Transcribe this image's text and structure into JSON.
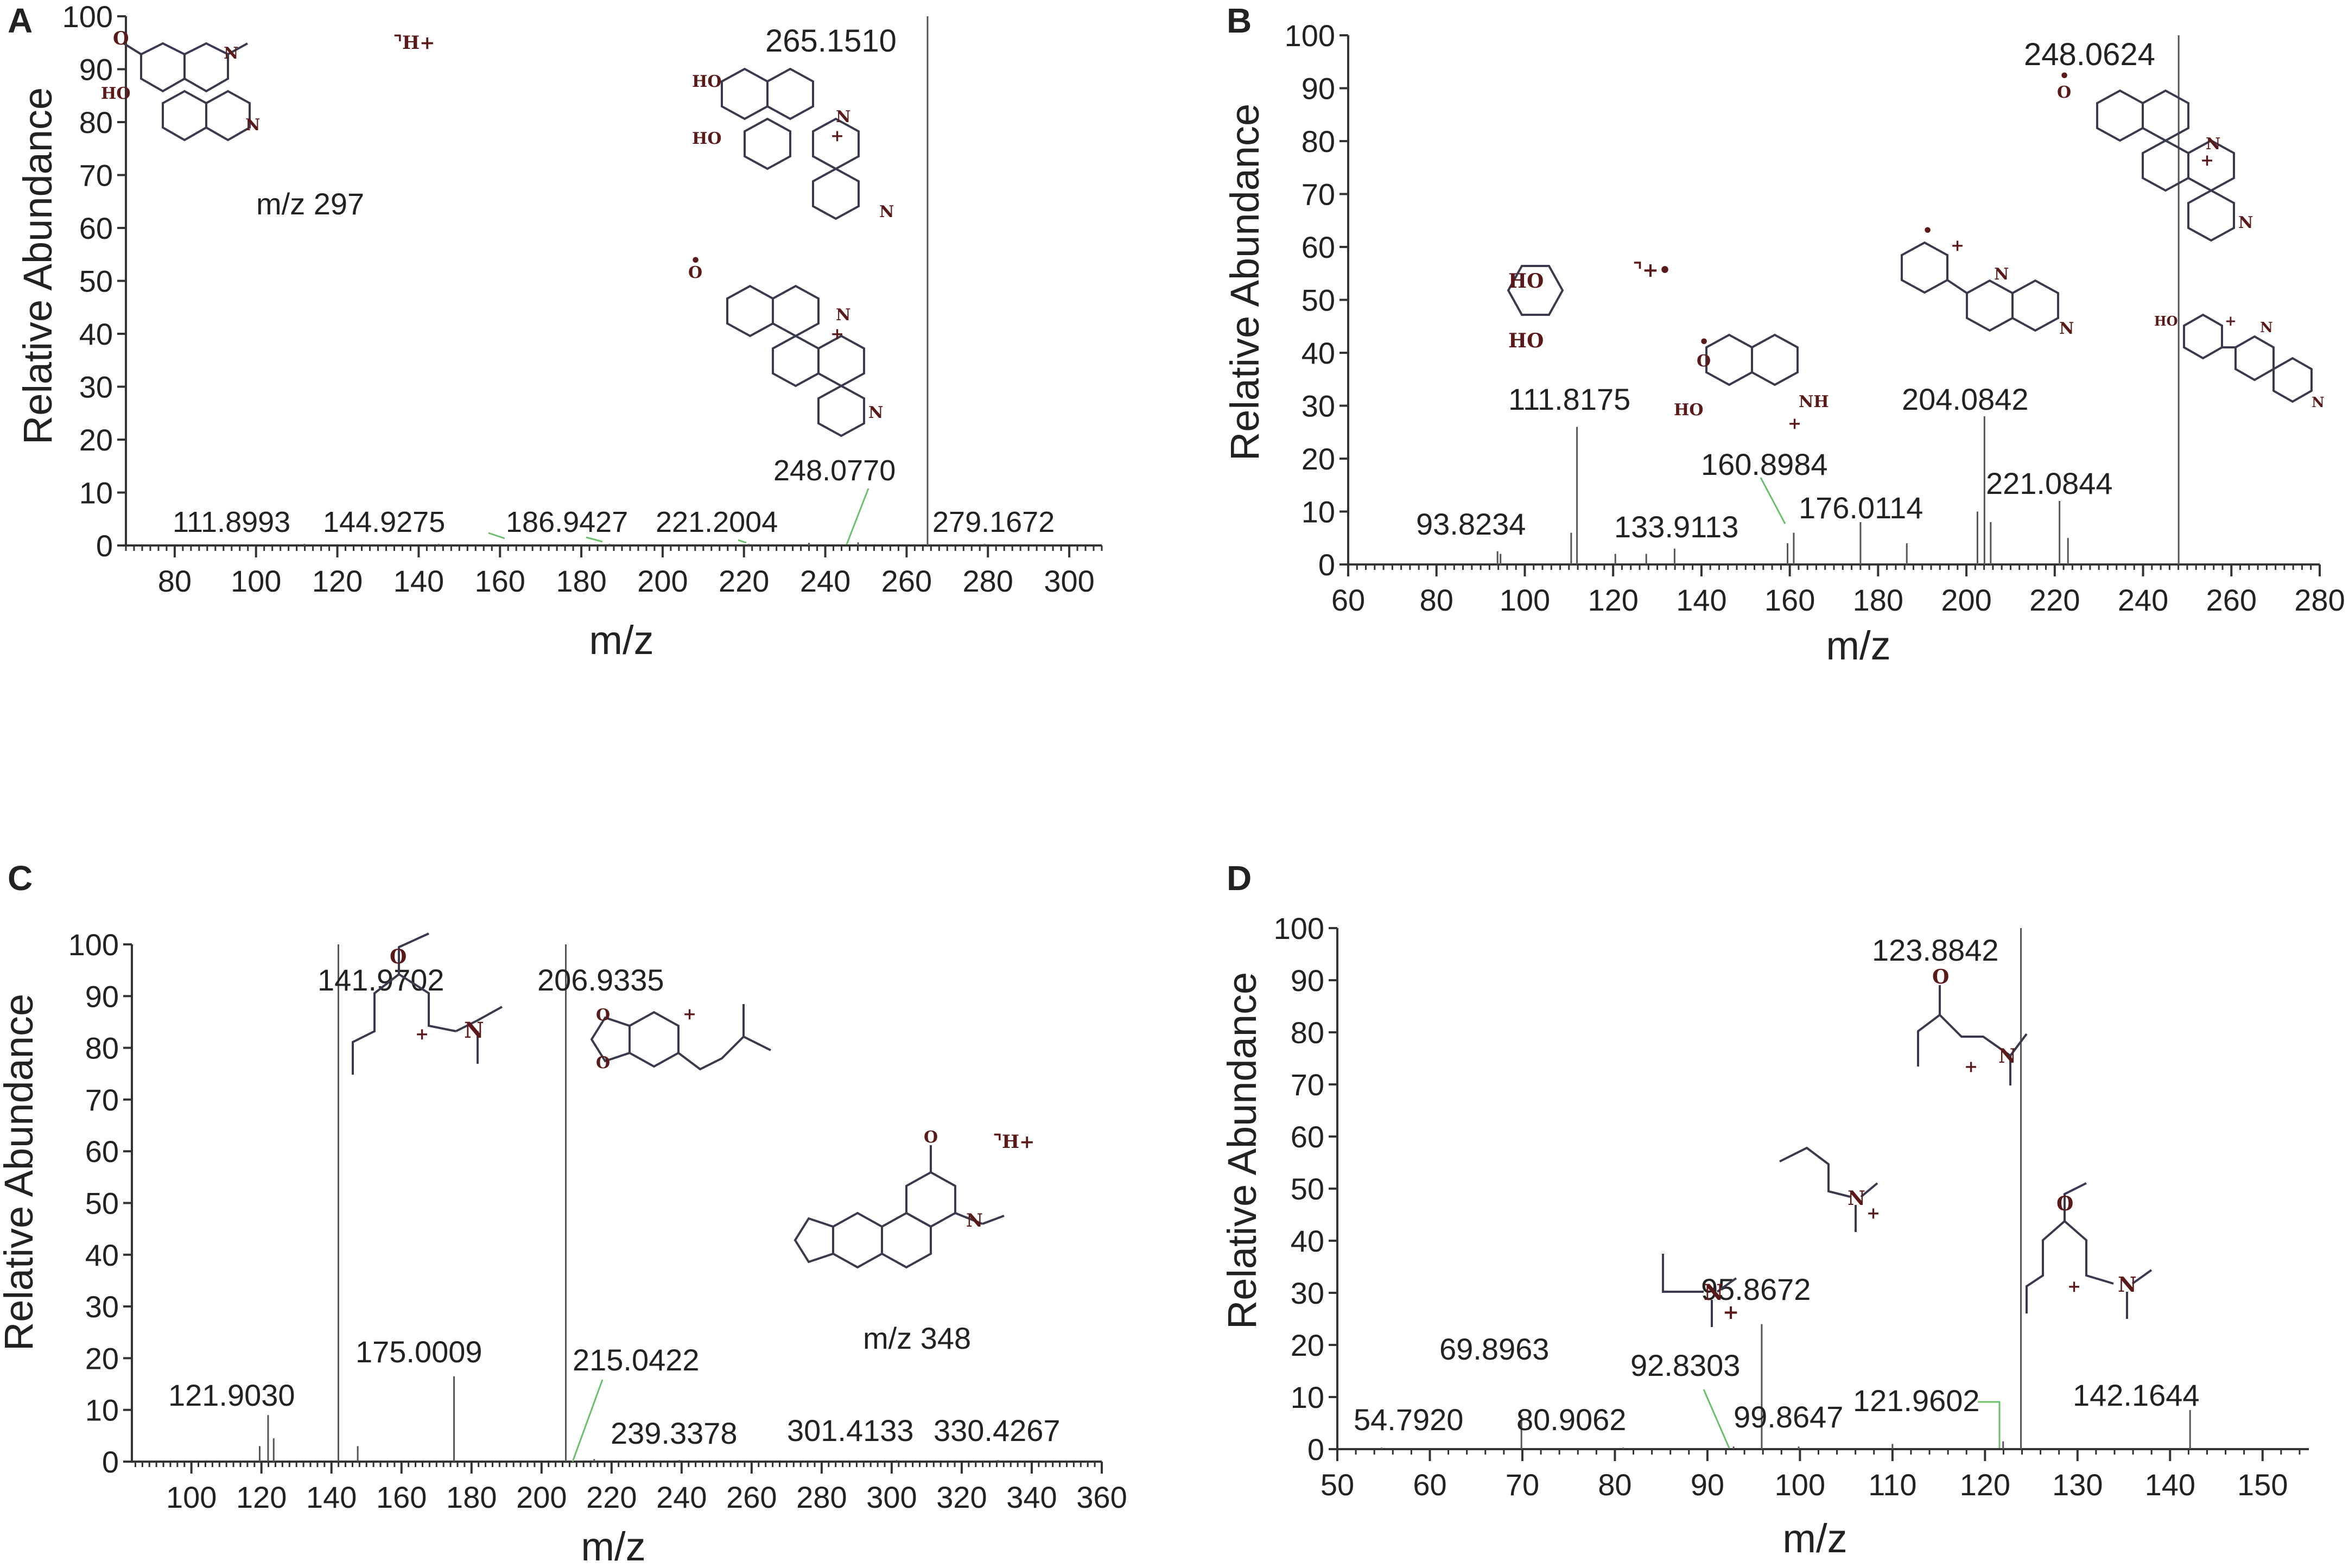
{
  "figure": {
    "background": "#ffffff",
    "axis_color": "#333333",
    "peak_color": "#555555",
    "leader_color": "#6bbf6b"
  },
  "chart_data": [
    {
      "id": "A",
      "panel_label": "A",
      "type": "bar",
      "title": "",
      "xlabel": "m/z",
      "ylabel": "Relative Abundance",
      "xlim": [
        68,
        308
      ],
      "ylim": [
        0,
        100
      ],
      "xticks": [
        80,
        100,
        120,
        140,
        160,
        180,
        200,
        220,
        240,
        260,
        280,
        300
      ],
      "yticks": [
        0,
        10,
        20,
        30,
        40,
        50,
        60,
        70,
        80,
        90,
        100
      ],
      "peaks": [
        {
          "mz": 111.8993,
          "intensity": 0.3
        },
        {
          "mz": 144.9275,
          "intensity": 0.3
        },
        {
          "mz": 186.9427,
          "intensity": 0.3
        },
        {
          "mz": 221.2004,
          "intensity": 0.3
        },
        {
          "mz": 236.0,
          "intensity": 0.5
        },
        {
          "mz": 248.077,
          "intensity": 0.6
        },
        {
          "mz": 265.151,
          "intensity": 100
        },
        {
          "mz": 279.1672,
          "intensity": 0.3
        }
      ],
      "annotations": [
        "265.1510",
        "248.0770",
        "111.8993",
        "144.9275",
        "186.9427",
        "221.2004",
        "279.1672",
        "m/z 297"
      ]
    },
    {
      "id": "B",
      "panel_label": "B",
      "type": "bar",
      "title": "",
      "xlabel": "m/z",
      "ylabel": "Relative Abundance",
      "xlim": [
        60,
        280
      ],
      "ylim": [
        0,
        100
      ],
      "xticks": [
        60,
        80,
        100,
        120,
        140,
        160,
        180,
        200,
        220,
        240,
        260,
        280
      ],
      "yticks": [
        0,
        10,
        20,
        30,
        40,
        50,
        60,
        70,
        80,
        90,
        100
      ],
      "peaks": [
        {
          "mz": 93.8234,
          "intensity": 2.5
        },
        {
          "mz": 94.5,
          "intensity": 2
        },
        {
          "mz": 110.5,
          "intensity": 6
        },
        {
          "mz": 111.8175,
          "intensity": 26
        },
        {
          "mz": 120.5,
          "intensity": 2
        },
        {
          "mz": 127.5,
          "intensity": 2
        },
        {
          "mz": 133.9113,
          "intensity": 3
        },
        {
          "mz": 159.5,
          "intensity": 4
        },
        {
          "mz": 160.8984,
          "intensity": 6
        },
        {
          "mz": 176.0114,
          "intensity": 8
        },
        {
          "mz": 186.5,
          "intensity": 4
        },
        {
          "mz": 202.5,
          "intensity": 10
        },
        {
          "mz": 204.0842,
          "intensity": 28
        },
        {
          "mz": 205.5,
          "intensity": 8
        },
        {
          "mz": 221.0844,
          "intensity": 12
        },
        {
          "mz": 223.0,
          "intensity": 5
        },
        {
          "mz": 248.0624,
          "intensity": 100
        }
      ],
      "annotations": [
        "248.0624",
        "111.8175",
        "204.0842",
        "160.8984",
        "221.0844",
        "176.0114",
        "93.8234",
        "133.9113"
      ]
    },
    {
      "id": "C",
      "panel_label": "C",
      "type": "bar",
      "title": "",
      "xlabel": "m/z",
      "ylabel": "Relative Abundance",
      "xlim": [
        83,
        360
      ],
      "ylim": [
        0,
        100
      ],
      "xticks": [
        100,
        120,
        140,
        160,
        180,
        200,
        220,
        240,
        260,
        280,
        300,
        320,
        340,
        360
      ],
      "yticks": [
        0,
        10,
        20,
        30,
        40,
        50,
        60,
        70,
        80,
        90,
        100
      ],
      "peaks": [
        {
          "mz": 119.5,
          "intensity": 3
        },
        {
          "mz": 121.903,
          "intensity": 9
        },
        {
          "mz": 123.5,
          "intensity": 4.5
        },
        {
          "mz": 141.9702,
          "intensity": 100
        },
        {
          "mz": 147.5,
          "intensity": 3
        },
        {
          "mz": 175.0009,
          "intensity": 16.5
        },
        {
          "mz": 206.9335,
          "intensity": 100
        },
        {
          "mz": 215.0422,
          "intensity": 0.5
        },
        {
          "mz": 239.3378,
          "intensity": 0.3
        },
        {
          "mz": 301.4133,
          "intensity": 0.3
        },
        {
          "mz": 330.4267,
          "intensity": 0.3
        }
      ],
      "annotations": [
        "141.9702",
        "206.9335",
        "175.0009",
        "121.9030",
        "215.0422",
        "239.3378",
        "301.4133",
        "330.4267",
        "m/z 348"
      ]
    },
    {
      "id": "D",
      "panel_label": "D",
      "type": "bar",
      "title": "",
      "xlabel": "m/z",
      "ylabel": "Relative Abundance",
      "xlim": [
        50,
        155
      ],
      "ylim": [
        0,
        100
      ],
      "xticks": [
        50,
        60,
        70,
        80,
        90,
        100,
        110,
        120,
        130,
        140,
        150
      ],
      "yticks": [
        0,
        10,
        20,
        30,
        40,
        50,
        60,
        70,
        80,
        90,
        100
      ],
      "peaks": [
        {
          "mz": 54.792,
          "intensity": 0.3
        },
        {
          "mz": 69.8963,
          "intensity": 6.5
        },
        {
          "mz": 80.9062,
          "intensity": 0.3
        },
        {
          "mz": 92.8303,
          "intensity": 0.5
        },
        {
          "mz": 95.8672,
          "intensity": 24
        },
        {
          "mz": 99.8647,
          "intensity": 0.5
        },
        {
          "mz": 110.0,
          "intensity": 1
        },
        {
          "mz": 121.9602,
          "intensity": 1.5
        },
        {
          "mz": 123.8842,
          "intensity": 100
        },
        {
          "mz": 142.1644,
          "intensity": 7.5
        }
      ],
      "annotations": [
        "123.8842",
        "95.8672",
        "69.8963",
        "92.8303",
        "54.7920",
        "80.9062",
        "99.8647",
        "121.9602",
        "142.1644"
      ]
    }
  ],
  "structure_labels": {
    "methoxy_o": "O",
    "hydroxy": "HO",
    "nitrogen": "N",
    "nitrogen_h": "NH",
    "protonated": "⌝H+",
    "radical_cation": "⌝+•",
    "plus": "+",
    "radical_dot": "•",
    "oxygen": "O"
  }
}
